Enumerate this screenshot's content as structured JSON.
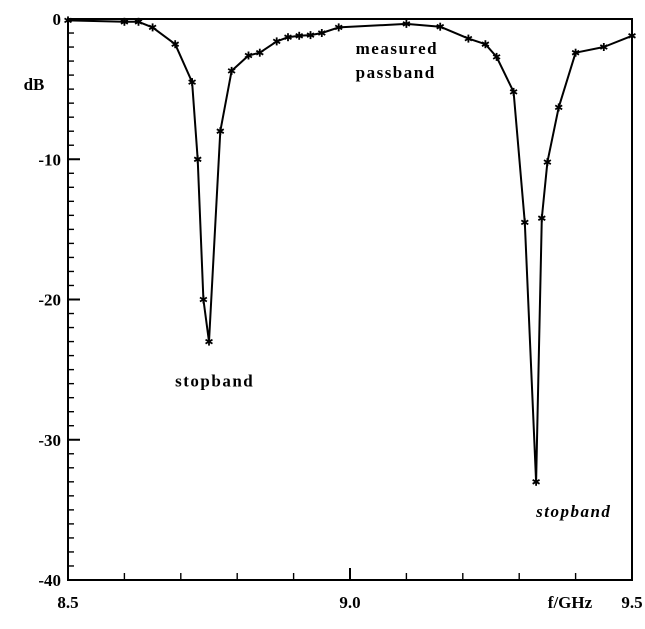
{
  "chart_data": {
    "type": "line",
    "title": "",
    "xlabel": "f/GHz",
    "ylabel": "dB",
    "xlim": [
      8.5,
      9.5
    ],
    "ylim": [
      -40,
      0
    ],
    "x_ticks": [
      "8.5",
      "9.0",
      "9.5"
    ],
    "y_ticks": [
      "0",
      "-10",
      "-20",
      "-30",
      "-40"
    ],
    "grid": false,
    "series": [
      {
        "name": "",
        "marker": "star",
        "color": "#000000",
        "x": [
          8.5,
          8.6,
          8.625,
          8.65,
          8.69,
          8.72,
          8.73,
          8.74,
          8.75,
          8.77,
          8.79,
          8.82,
          8.84,
          8.87,
          8.89,
          8.91,
          8.93,
          8.95,
          8.98,
          9.1,
          9.16,
          9.21,
          9.24,
          9.26,
          9.29,
          9.31,
          9.33,
          9.34,
          9.35,
          9.37,
          9.4,
          9.45,
          9.5
        ],
        "y": [
          -0.1,
          -0.2,
          -0.2,
          -0.6,
          -1.8,
          -4.5,
          -10,
          -20,
          -23,
          -8,
          -3.7,
          -2.6,
          -2.4,
          -1.6,
          -1.3,
          -1.2,
          -1.15,
          -1.0,
          -0.6,
          -0.35,
          -0.55,
          -1.4,
          -1.8,
          -2.7,
          -5.2,
          -14.5,
          -33,
          -14.2,
          -10.2,
          -6.3,
          -2.4,
          -2.0,
          -1.2
        ]
      }
    ],
    "annotations": [
      {
        "text_lines": [
          "measured",
          "passband"
        ],
        "x": 9.01,
        "y": -2.5
      },
      {
        "text_lines": [
          "stopband"
        ],
        "x": 8.69,
        "y": -26.2
      },
      {
        "text_lines": [
          "stopband"
        ],
        "x": 9.33,
        "y": -35.5,
        "italic": true
      }
    ]
  }
}
